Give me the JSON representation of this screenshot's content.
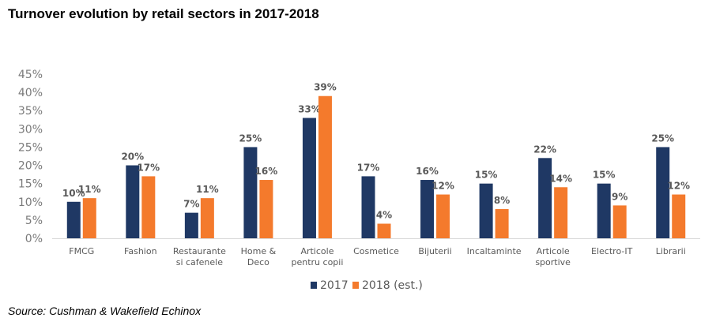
{
  "title": "Turnover evolution by retail sectors in 2017-2018",
  "source": "Source: Cushman & Wakefield Echinox",
  "colors": {
    "series_2017": "#1f3864",
    "series_2018": "#f47a2c",
    "axis": "#d9d9d9"
  },
  "chart_data": {
    "type": "bar",
    "title": "Turnover evolution by retail sectors in 2017-2018",
    "xlabel": "",
    "ylabel": "",
    "ylim": [
      0,
      45
    ],
    "yticks": [
      "0%",
      "5%",
      "10%",
      "15%",
      "20%",
      "25%",
      "30%",
      "35%",
      "40%",
      "45%"
    ],
    "grid": false,
    "legend": "bottom-center",
    "categories": [
      [
        "FMCG"
      ],
      [
        "Fashion"
      ],
      [
        "Restaurante",
        "si cafenele"
      ],
      [
        "Home &",
        "Deco"
      ],
      [
        "Articole",
        "pentru copii"
      ],
      [
        "Cosmetice"
      ],
      [
        "Bijuterii"
      ],
      [
        "Incaltaminte"
      ],
      [
        "Articole",
        "sportive"
      ],
      [
        "Electro-IT"
      ],
      [
        "Librarii"
      ]
    ],
    "series": [
      {
        "name": "2017",
        "values": [
          10,
          20,
          7,
          25,
          33,
          17,
          16,
          15,
          22,
          15,
          25
        ],
        "labels": [
          "10%",
          "20%",
          "7%",
          "25%",
          "33%",
          "17%",
          "16%",
          "15%",
          "22%",
          "15%",
          "25%"
        ]
      },
      {
        "name": "2018 (est.)",
        "values": [
          11,
          17,
          11,
          16,
          39,
          4,
          12,
          8,
          14,
          9,
          12
        ],
        "labels": [
          "11%",
          "17%",
          "11%",
          "16%",
          "39%",
          "4%",
          "12%",
          "8%",
          "14%",
          "9%",
          "12%"
        ]
      }
    ]
  }
}
